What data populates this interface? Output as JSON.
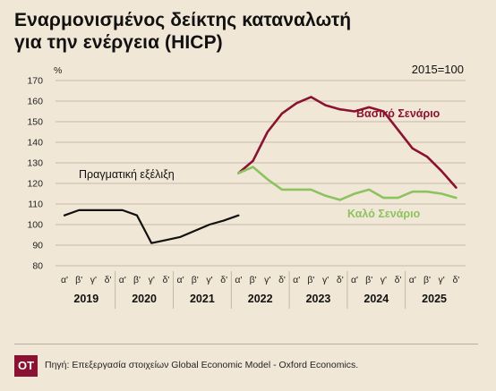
{
  "title": {
    "line1": "Εναρμονισμένος δείκτης καταναλωτή",
    "line2": "για την ενέργεια (HICP)"
  },
  "footer": {
    "logo": "ΟΤ",
    "source": "Πηγή: Επεξεργασία στοιχείων Global Economic Model - Oxford Economics."
  },
  "colors": {
    "background": "#f1e7d6",
    "actual": "#111111",
    "base": "#8b1230",
    "good": "#8cc360",
    "grid": "#b9ad9b"
  },
  "chart_data": {
    "type": "line",
    "ylabel": "%",
    "base_note": "2015=100",
    "ylim": [
      80,
      170
    ],
    "yticks": [
      80,
      90,
      100,
      110,
      120,
      130,
      140,
      150,
      160,
      170
    ],
    "grid": true,
    "quarter_labels": [
      "α'",
      "β'",
      "γ'",
      "δ'",
      "α'",
      "β'",
      "γ'",
      "δ'",
      "α'",
      "β'",
      "γ'",
      "δ'",
      "α'",
      "β'",
      "γ'",
      "δ'",
      "α'",
      "β'",
      "γ'",
      "δ'",
      "α'",
      "β'",
      "γ'",
      "δ'",
      "α'",
      "β'",
      "γ'",
      "δ'"
    ],
    "years": [
      {
        "label": "2019",
        "start": 0
      },
      {
        "label": "2020",
        "start": 4
      },
      {
        "label": "2021",
        "start": 8
      },
      {
        "label": "2022",
        "start": 12
      },
      {
        "label": "2023",
        "start": 16
      },
      {
        "label": "2024",
        "start": 20
      },
      {
        "label": "2025",
        "start": 24
      }
    ],
    "series": [
      {
        "name": "Πραγματική εξέλιξη",
        "color": "#111111",
        "x": [
          0,
          1,
          2,
          3,
          4,
          5,
          6,
          7,
          8,
          9,
          10,
          11,
          12
        ],
        "values": [
          104.5,
          107,
          107,
          107,
          107,
          104.5,
          91,
          92.5,
          94,
          97,
          100,
          102,
          104.5
        ]
      },
      {
        "name": "Βασικό Σενάριο",
        "color": "#8b1230",
        "x": [
          12,
          13,
          14,
          15,
          16,
          17,
          18,
          19,
          20,
          21,
          22,
          23,
          24,
          25,
          26,
          27
        ],
        "values": [
          125,
          131,
          145,
          154,
          159,
          162,
          158,
          156,
          155,
          157,
          155,
          146,
          137,
          133,
          126,
          118
        ]
      },
      {
        "name": "Καλό Σενάριο",
        "color": "#8cc360",
        "x": [
          12,
          13,
          14,
          15,
          16,
          17,
          18,
          19,
          20,
          21,
          22,
          23,
          24,
          25,
          26,
          27
        ],
        "values": [
          125,
          128,
          122,
          117,
          117,
          117,
          114,
          112,
          115,
          117,
          113,
          113,
          116,
          116,
          115,
          113
        ]
      }
    ]
  }
}
